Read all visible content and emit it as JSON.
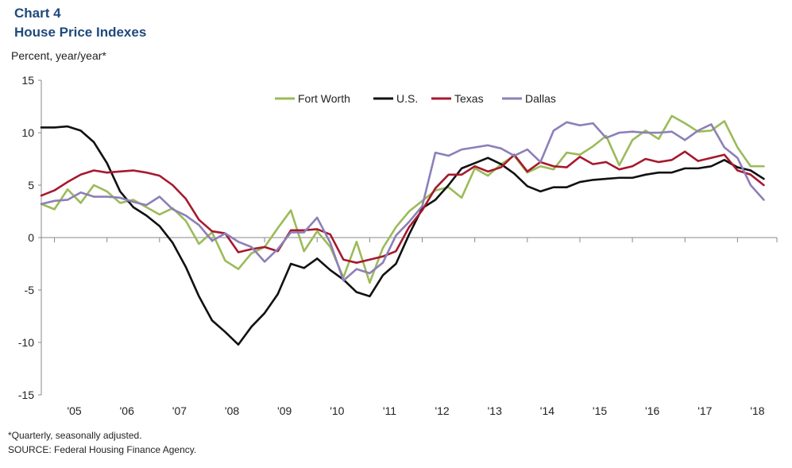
{
  "header": {
    "title_line1": "Chart 4",
    "title_line2": "House Price Indexes",
    "units": "Percent, year/year*"
  },
  "footnotes": {
    "note": "*Quarterly, seasonally adjusted.",
    "source": "SOURCE: Federal Housing Finance Agency."
  },
  "chart_data": {
    "type": "line",
    "title": "House Price Indexes",
    "ylabel": "Percent, year/year*",
    "xlabel": "",
    "ylim": [
      -15,
      15
    ],
    "yticks": [
      15,
      10,
      5,
      0,
      -5,
      -10,
      -15
    ],
    "x_start": 2004.75,
    "x_end": 2018.75,
    "x_step": 0.25,
    "xtick_labels": [
      "'05",
      "'06",
      "'07",
      "'08",
      "'09",
      "'10",
      "'11",
      "'12",
      "'13",
      "'14",
      "'15",
      "'16",
      "'17",
      "'18"
    ],
    "legend_position": "top-center",
    "series": [
      {
        "name": "Fort Worth",
        "color": "#9bbb59",
        "values": [
          3.2,
          2.7,
          4.6,
          3.3,
          5.0,
          4.4,
          3.3,
          3.6,
          2.9,
          2.2,
          2.8,
          1.6,
          -0.6,
          0.5,
          -2.2,
          -3.0,
          -1.5,
          -0.9,
          0.9,
          2.6,
          -1.3,
          0.6,
          -0.9,
          -3.8,
          -0.4,
          -4.3,
          -1.0,
          1.0,
          2.5,
          3.5,
          4.5,
          4.8,
          3.8,
          6.6,
          5.9,
          7.0,
          7.8,
          6.2,
          6.8,
          6.5,
          8.1,
          7.9,
          8.7,
          9.7,
          6.9,
          9.3,
          10.2,
          9.4,
          11.6,
          10.9,
          10.1,
          10.2,
          11.1,
          8.6,
          6.8,
          6.8
        ]
      },
      {
        "name": "U.S.",
        "color": "#111111",
        "values": [
          10.5,
          10.5,
          10.6,
          10.2,
          9.1,
          7.1,
          4.4,
          2.9,
          2.1,
          1.1,
          -0.5,
          -2.8,
          -5.6,
          -7.9,
          -9.0,
          -10.2,
          -8.5,
          -7.2,
          -5.4,
          -2.5,
          -2.9,
          -2.0,
          -3.1,
          -4.0,
          -5.2,
          -5.6,
          -3.6,
          -2.5,
          0.3,
          2.8,
          3.6,
          5.0,
          6.6,
          7.1,
          7.6,
          7.0,
          6.1,
          4.9,
          4.4,
          4.8,
          4.8,
          5.3,
          5.5,
          5.6,
          5.7,
          5.7,
          6.0,
          6.2,
          6.2,
          6.6,
          6.6,
          6.8,
          7.4,
          6.7,
          6.4,
          5.6
        ]
      },
      {
        "name": "Texas",
        "color": "#a6192e",
        "values": [
          4.0,
          4.5,
          5.3,
          6.0,
          6.4,
          6.2,
          6.3,
          6.4,
          6.2,
          5.9,
          5.0,
          3.7,
          1.7,
          0.6,
          0.4,
          -1.4,
          -1.1,
          -0.9,
          -1.3,
          0.7,
          0.7,
          0.8,
          0.3,
          -2.1,
          -2.4,
          -2.1,
          -1.8,
          -1.3,
          1.0,
          2.6,
          4.7,
          6.0,
          6.0,
          6.8,
          6.3,
          6.7,
          7.9,
          6.3,
          7.2,
          6.8,
          6.7,
          7.7,
          7.0,
          7.2,
          6.5,
          6.8,
          7.5,
          7.2,
          7.4,
          8.2,
          7.3,
          7.6,
          7.9,
          6.4,
          6.0,
          5.0
        ]
      },
      {
        "name": "Dallas",
        "color": "#8d7fb8",
        "values": [
          3.2,
          3.5,
          3.6,
          4.3,
          3.9,
          3.9,
          3.8,
          3.4,
          3.1,
          3.9,
          2.7,
          2.1,
          1.2,
          -0.3,
          0.4,
          -0.4,
          -0.9,
          -2.3,
          -1.1,
          0.5,
          0.5,
          1.9,
          -0.5,
          -4.1,
          -3.0,
          -3.4,
          -2.4,
          0.2,
          1.5,
          3.0,
          8.1,
          7.8,
          8.4,
          8.6,
          8.8,
          8.5,
          7.8,
          8.4,
          7.2,
          10.2,
          11.0,
          10.7,
          10.9,
          9.5,
          10.0,
          10.1,
          10.0,
          10.0,
          10.1,
          9.3,
          10.2,
          10.8,
          8.6,
          7.6,
          5.0,
          3.6
        ]
      }
    ]
  }
}
